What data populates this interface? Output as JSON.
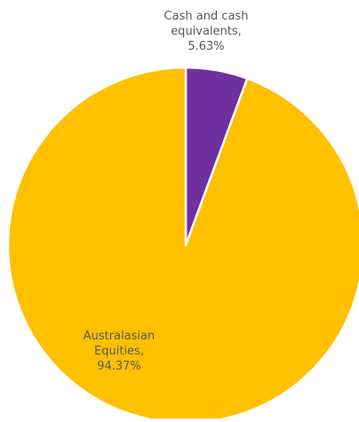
{
  "chart_data": {
    "type": "pie",
    "title": "",
    "slices": [
      {
        "name": "Cash and cash equivalents",
        "value": 5.63,
        "color": "#7030a0",
        "label_lines": [
          "Cash and cash",
          "equivalents,",
          "5.63%"
        ]
      },
      {
        "name": "Australasian Equities",
        "value": 94.37,
        "color": "#ffc000",
        "label_lines": [
          "Australasian",
          "Equities,",
          "94.37%"
        ]
      }
    ],
    "start_angle_deg": 0,
    "direction": "clockwise",
    "legend": "none"
  }
}
